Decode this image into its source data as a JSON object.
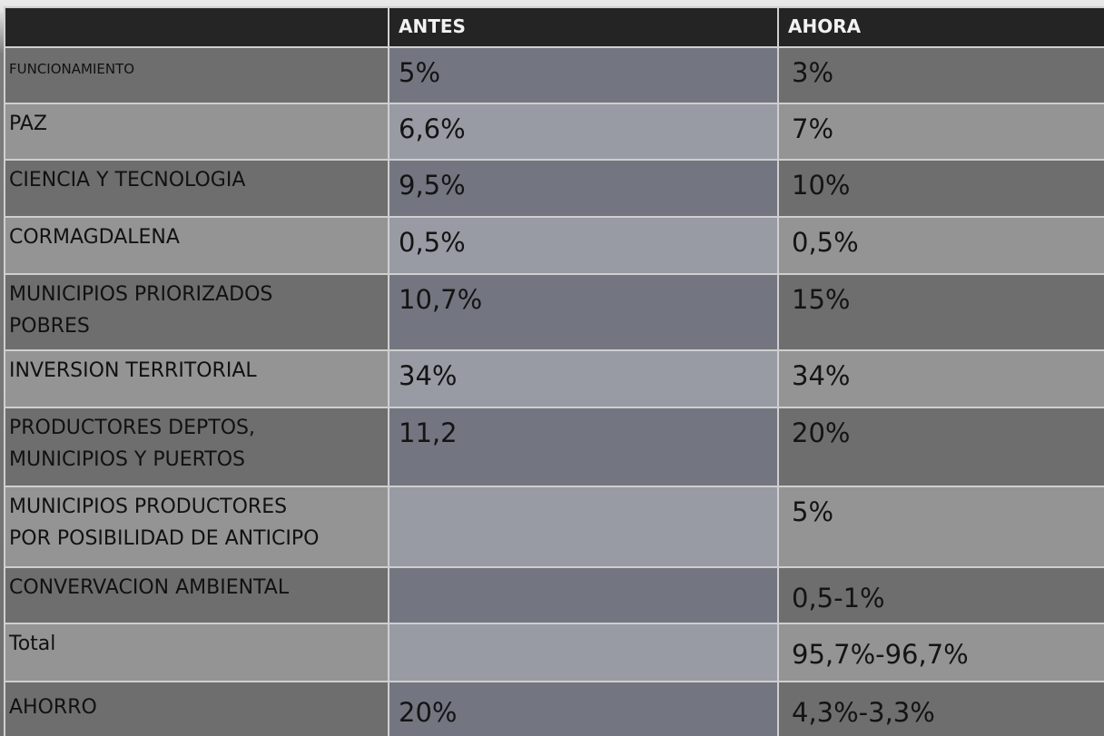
{
  "headers": {
    "category": "",
    "antes": "ANTES",
    "ahora": "AHORA"
  },
  "rows": [
    {
      "label": "FUNCIONAMIENTO",
      "antes": "5%",
      "ahora": "3%"
    },
    {
      "label": "PAZ",
      "antes": "6,6%",
      "ahora": "7%"
    },
    {
      "label": "CIENCIA Y TECNOLOGIA",
      "antes": "9,5%",
      "ahora": "10%"
    },
    {
      "label": "CORMAGDALENA",
      "antes": "0,5%",
      "ahora": "0,5%"
    },
    {
      "label": "MUNICIPIOS PRIORIZADOS\nPOBRES",
      "antes": "10,7%",
      "ahora": "15%"
    },
    {
      "label": "INVERSION TERRITORIAL",
      "antes": "34%",
      "ahora": "34%"
    },
    {
      "label": "PRODUCTORES DEPTOS,\nMUNICIPIOS Y PUERTOS",
      "antes": "11,2",
      "ahora": "20%"
    },
    {
      "label": "MUNICIPIOS PRODUCTORES\nPOR POSIBILIDAD DE ANTICIPO",
      "antes": "",
      "ahora": "5%"
    },
    {
      "label": "CONVERVACION AMBIENTAL",
      "antes": "",
      "ahora": "0,5-1%"
    },
    {
      "label": "Total",
      "antes": "",
      "ahora": "95,7%-96,7%"
    },
    {
      "label": "AHORRO",
      "antes": "20%",
      "ahora": "4,3%-3,3%"
    }
  ]
}
